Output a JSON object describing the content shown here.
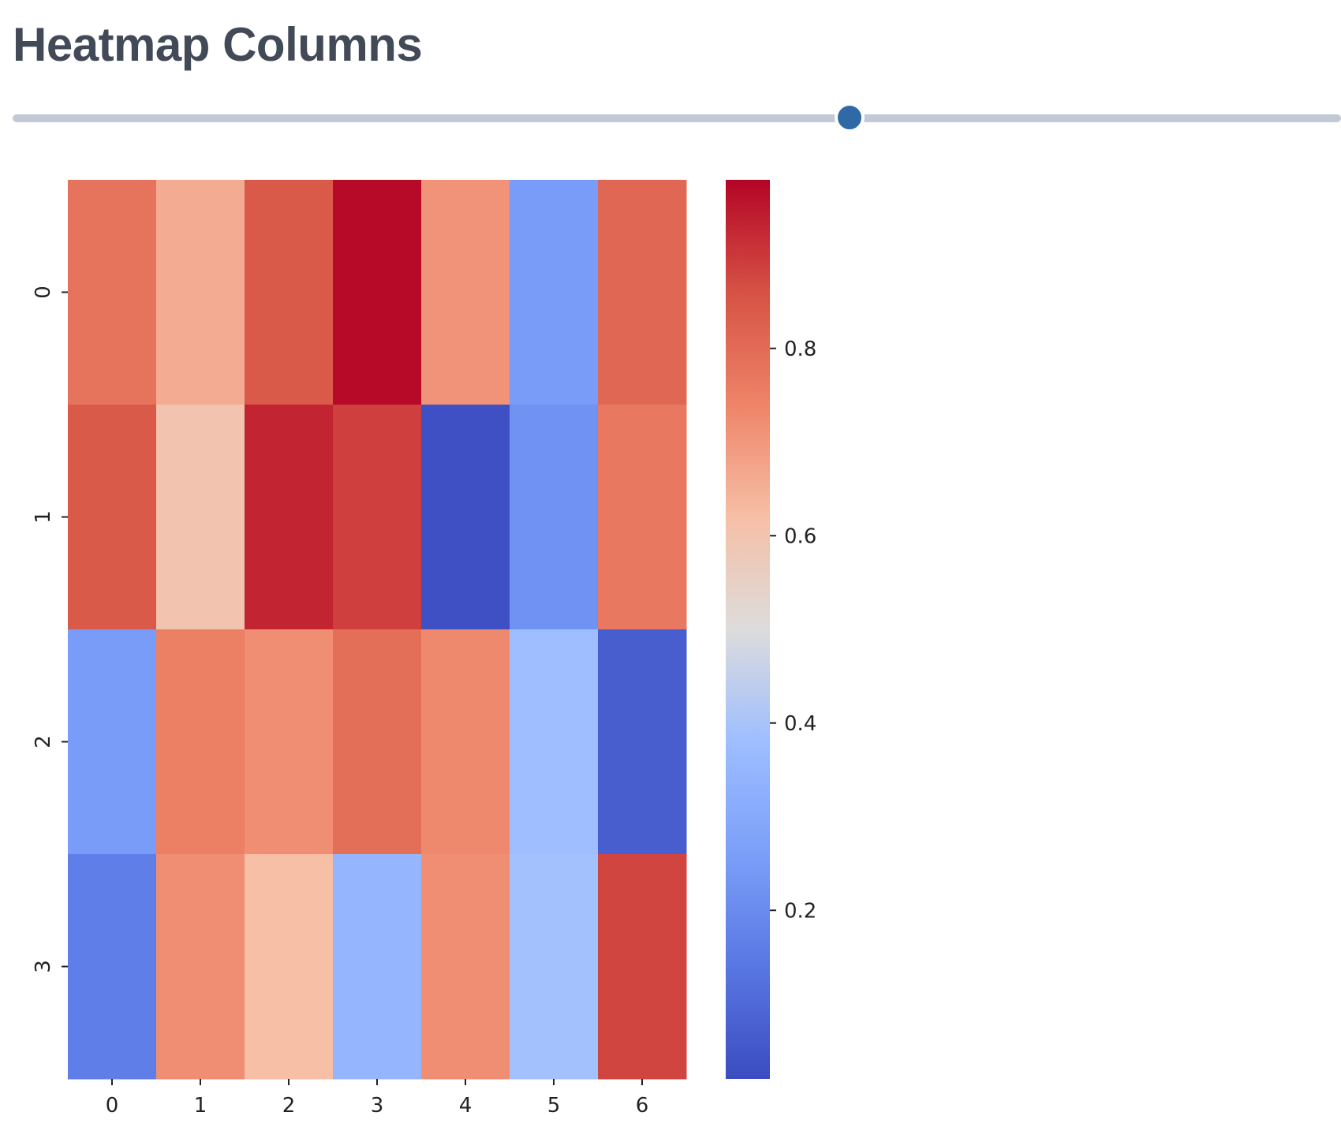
{
  "page": {
    "title": "Heatmap Columns"
  },
  "slider": {
    "value_fraction": 0.63,
    "track_color": "#c2c9d6",
    "thumb_color": "#2f6aa6"
  },
  "chart_data": {
    "type": "heatmap",
    "title": "",
    "xlabel": "",
    "ylabel": "",
    "colormap": "coolwarm",
    "x_tick_labels": [
      "0",
      "1",
      "2",
      "3",
      "4",
      "5",
      "6"
    ],
    "y_tick_labels": [
      "0",
      "1",
      "2",
      "3"
    ],
    "values": [
      [
        0.78,
        0.66,
        0.84,
        0.97,
        0.71,
        0.25,
        0.81
      ],
      [
        0.84,
        0.6,
        0.93,
        0.89,
        0.03,
        0.22,
        0.77
      ],
      [
        0.25,
        0.75,
        0.72,
        0.79,
        0.73,
        0.38,
        0.07
      ],
      [
        0.16,
        0.72,
        0.62,
        0.35,
        0.72,
        0.39,
        0.88
      ]
    ],
    "colorbar": {
      "vmin": 0.02,
      "vmax": 0.98,
      "tick_values": [
        0.2,
        0.4,
        0.6,
        0.8
      ],
      "tick_labels": [
        "0.2",
        "0.4",
        "0.6",
        "0.8"
      ]
    },
    "colormap_stops": [
      [
        0.0,
        "#3b4cc0"
      ],
      [
        0.125,
        "#5977e3"
      ],
      [
        0.25,
        "#7b9ff9"
      ],
      [
        0.375,
        "#9ebeff"
      ],
      [
        0.5,
        "#dddcdc"
      ],
      [
        0.625,
        "#f6bfa6"
      ],
      [
        0.75,
        "#ee8468"
      ],
      [
        0.875,
        "#d65244"
      ],
      [
        1.0,
        "#b40426"
      ]
    ]
  }
}
